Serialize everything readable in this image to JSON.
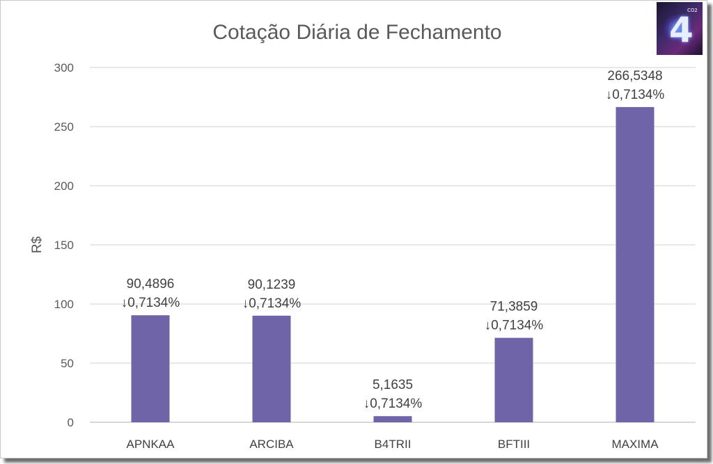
{
  "chart_data": {
    "type": "bar",
    "title": "Cotação Diária de Fechamento",
    "ylabel": "R$",
    "xlabel": "",
    "categories": [
      "APNKAA",
      "ARCIBA",
      "B4TRII",
      "BFTIII",
      "MAXIMA"
    ],
    "values": [
      90.4896,
      90.1239,
      5.1635,
      71.3859,
      266.5348
    ],
    "value_labels": [
      "90,4896",
      "90,1239",
      "5,1635",
      "71,3859",
      "266,5348"
    ],
    "change_labels": [
      "↓0,7134%",
      "↓0,7134%",
      "↓0,7134%",
      "↓0,7134%",
      "↓0,7134%"
    ],
    "ylim": [
      0,
      300
    ],
    "yticks": [
      0,
      50,
      100,
      150,
      200,
      250,
      300
    ],
    "grid": true,
    "legend": "none",
    "bar_color": "#7064a8",
    "grid_color": "#d9d9d9",
    "text_color": "#404040"
  },
  "logo": {
    "icon": "b4-logo-icon",
    "digit": "4",
    "superscript": "CO2"
  }
}
